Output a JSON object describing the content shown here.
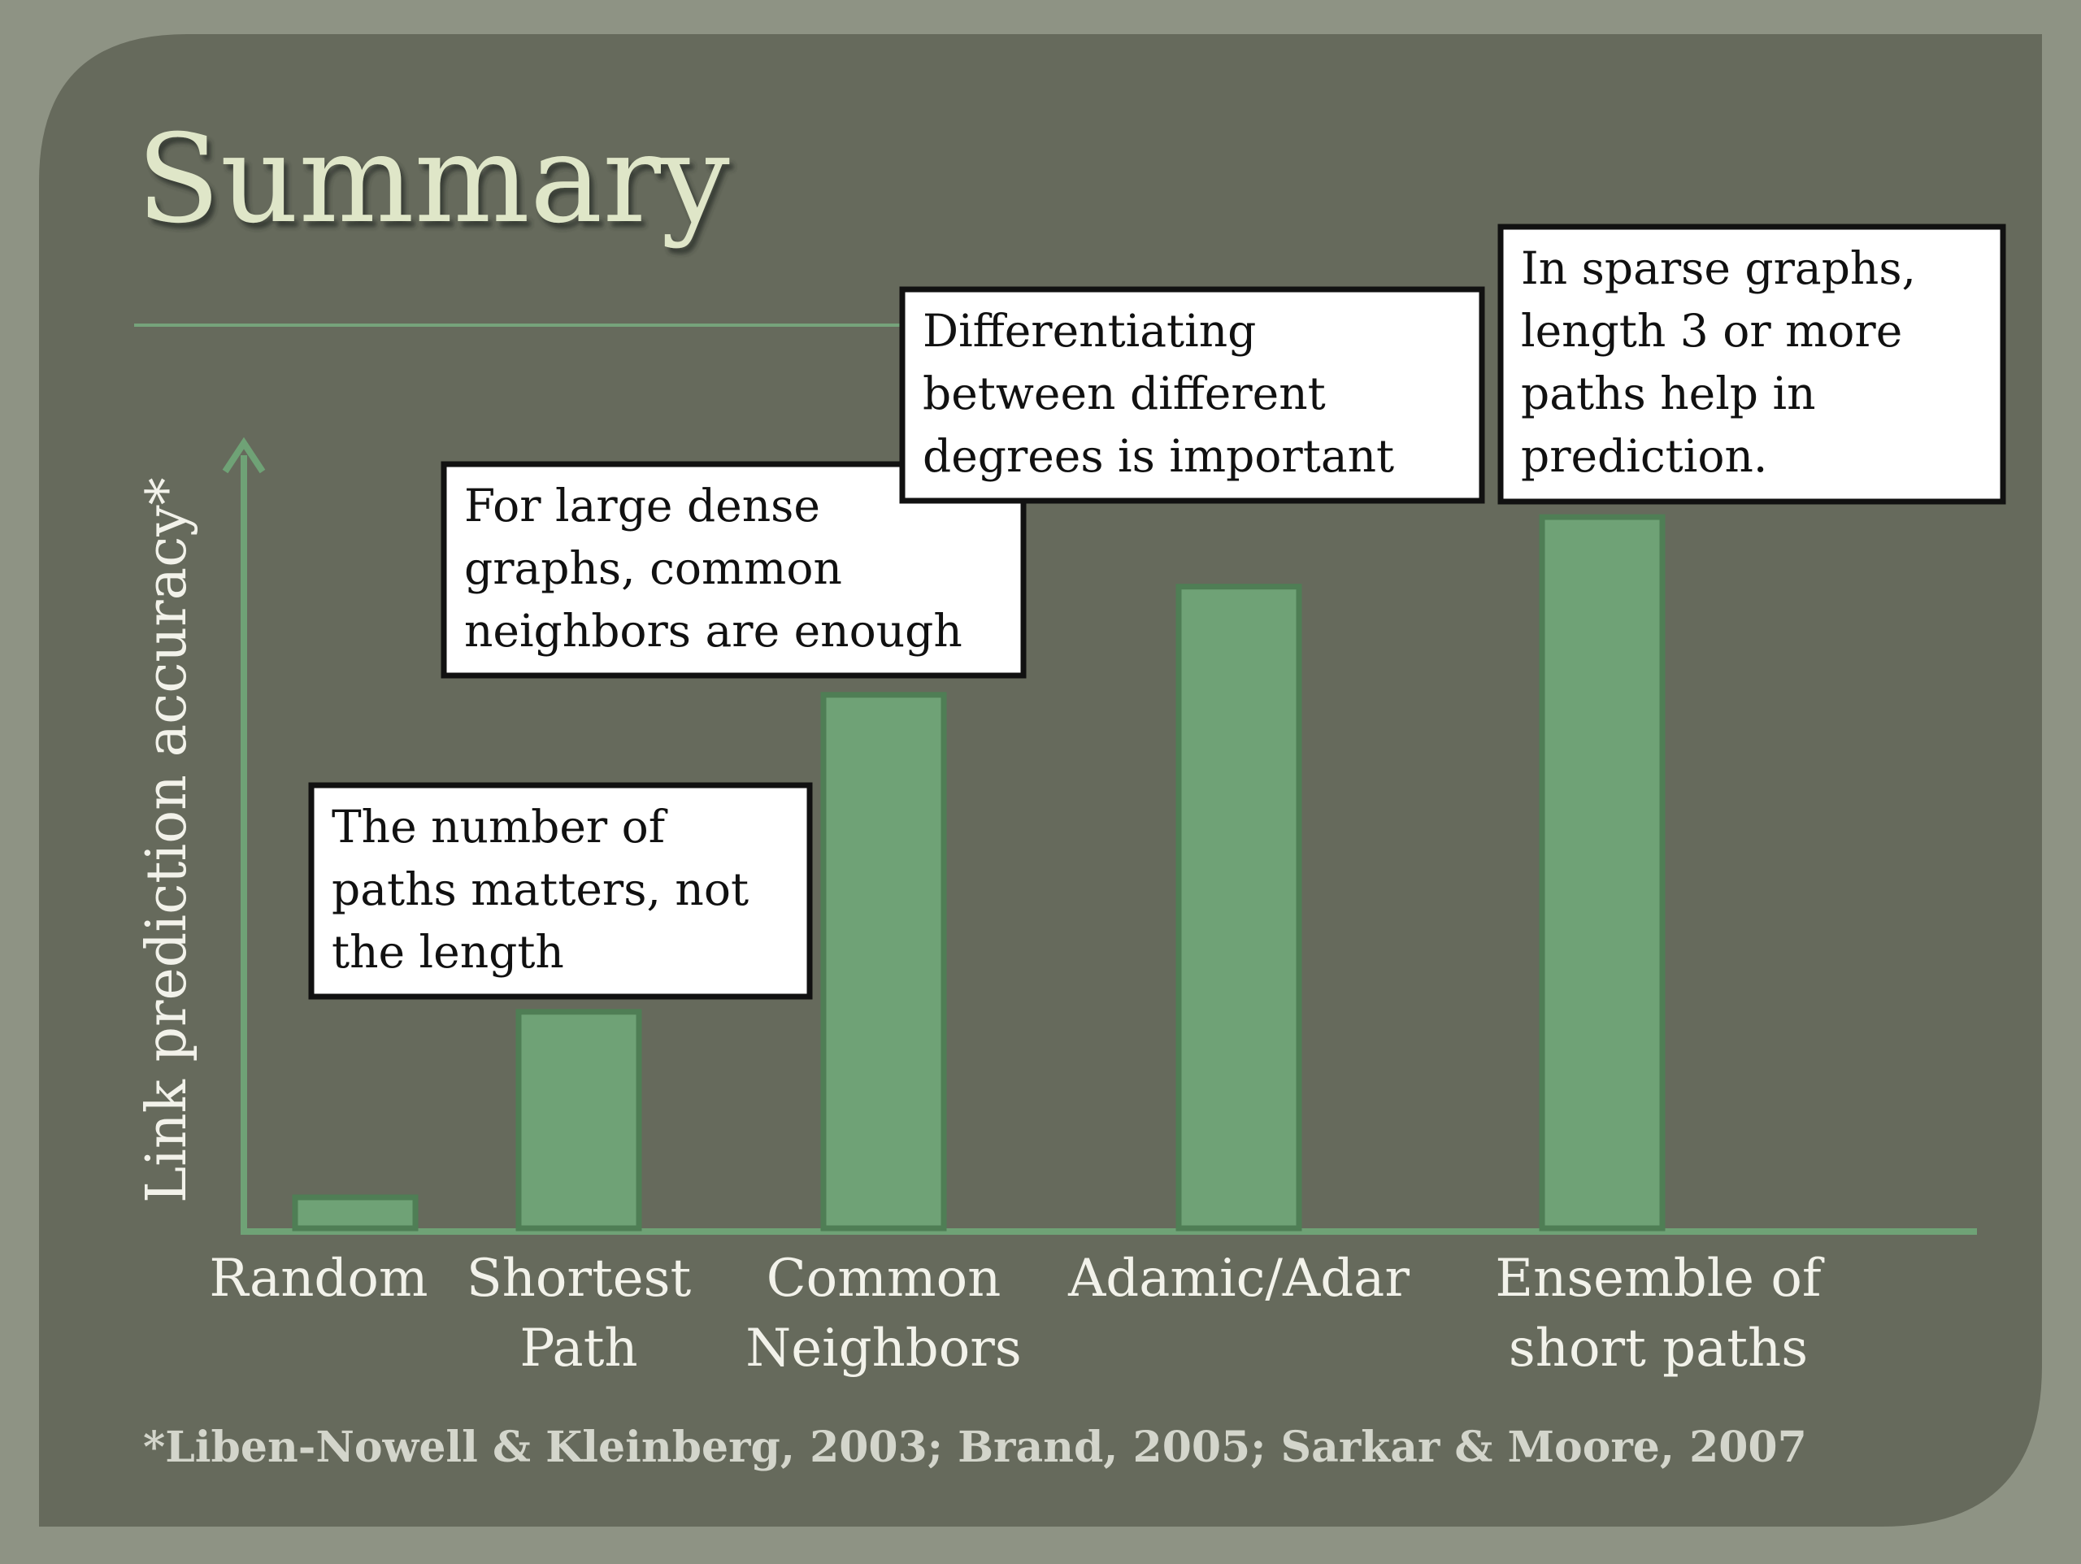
{
  "slide": {
    "title": "Summary",
    "footnote": "*Liben-Nowell & Kleinberg, 2003; Brand, 2005;  Sarkar & Moore, 2007",
    "colors": {
      "background": "#666a5c",
      "frame": "#8e9384",
      "bar": "#6fa276",
      "bar_border": "#4f7e55",
      "title": "#dfe6c8",
      "label": "#f2f2ea"
    }
  },
  "chart_data": {
    "type": "bar",
    "ylabel": "Link prediction accuracy*",
    "ylim": [
      0,
      100
    ],
    "categories": [
      [
        "Random"
      ],
      [
        "Shortest",
        "Path"
      ],
      [
        "Common",
        "Neighbors"
      ],
      [
        "Adamic/Adar"
      ],
      [
        "Ensemble of",
        "short paths"
      ]
    ],
    "values": [
      4,
      28,
      69,
      83,
      92
    ],
    "annotations": [
      {
        "category_index": 1,
        "lines": [
          "The number of",
          "paths matters, not",
          "the length"
        ]
      },
      {
        "category_index": 2,
        "lines": [
          "For large dense",
          "graphs, common",
          "neighbors are enough"
        ]
      },
      {
        "category_index": 3,
        "lines": [
          "Differentiating",
          "between different",
          "degrees is important"
        ]
      },
      {
        "category_index": 4,
        "lines": [
          "In sparse graphs,",
          "length 3 or more",
          "paths help in",
          "prediction."
        ]
      }
    ]
  }
}
